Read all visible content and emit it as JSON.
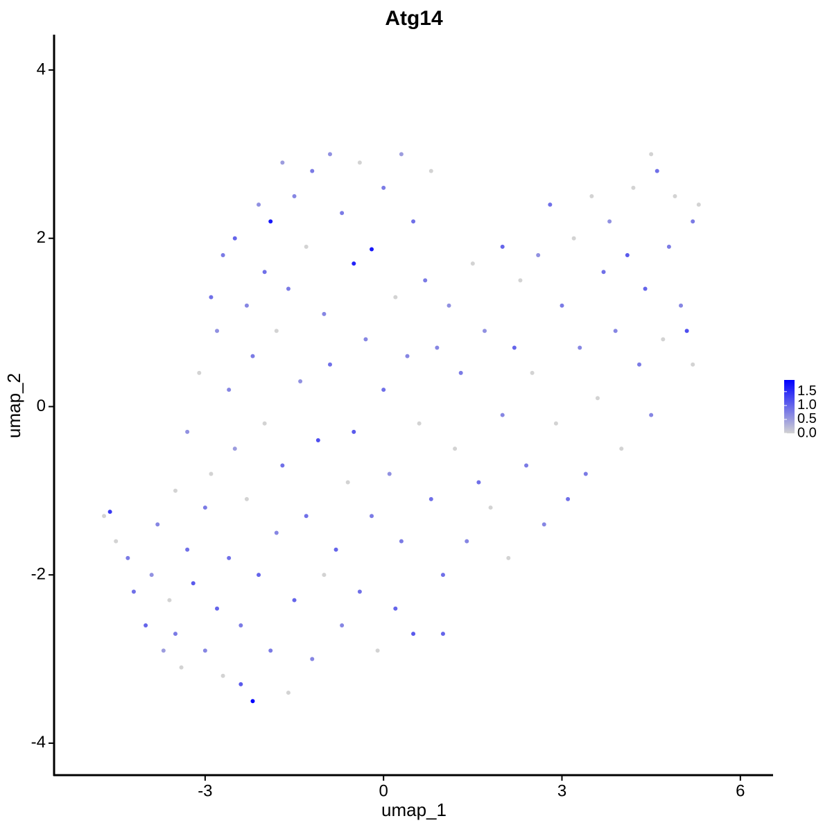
{
  "chart_data": {
    "type": "scatter",
    "title": "Atg14",
    "x_label": "umap_1",
    "y_label": "umap_2",
    "xlim": [
      -5.54,
      6.55
    ],
    "ylim": [
      -4.38,
      4.42
    ],
    "xticks": [
      -3,
      0,
      3,
      6
    ],
    "yticks": [
      -4,
      -2,
      0,
      2,
      4
    ],
    "grid": false,
    "colors": [
      "#d3d3d3",
      "#0000ff"
    ],
    "colorlim": [
      0,
      1.92
    ],
    "colorticks": [
      {
        "value": 0,
        "label": "0.0"
      },
      {
        "value": 0.5,
        "label": "0.5"
      },
      {
        "value": 1,
        "label": "1.0"
      },
      {
        "value": 1.5,
        "label": "1.5"
      }
    ],
    "x": [
      -4.6,
      -4.7,
      -4.5,
      -4.3,
      -4.2,
      -4.0,
      -3.9,
      -3.8,
      -3.7,
      -3.6,
      -3.5,
      -3.5,
      -3.4,
      -3.3,
      -3.3,
      -3.2,
      -3.1,
      -3.0,
      -3.0,
      -2.9,
      -2.9,
      -2.8,
      -2.8,
      -2.7,
      -2.7,
      -2.6,
      -2.6,
      -2.5,
      -2.5,
      -2.4,
      -2.4,
      -2.3,
      -2.3,
      -2.2,
      -2.2,
      -2.1,
      -2.1,
      -2.0,
      -2.0,
      -1.9,
      -1.9,
      -1.8,
      -1.8,
      -1.7,
      -1.7,
      -1.6,
      -1.6,
      -1.5,
      -1.5,
      -1.4,
      -1.3,
      -1.3,
      -1.2,
      -1.2,
      -1.1,
      -1.0,
      -1.0,
      -0.9,
      -0.9,
      -0.8,
      -0.7,
      -0.7,
      -0.6,
      -0.5,
      -0.5,
      -0.4,
      -0.4,
      -0.3,
      -0.2,
      -0.2,
      -0.1,
      0.0,
      0.0,
      0.1,
      0.2,
      0.2,
      0.3,
      0.3,
      0.4,
      0.5,
      0.5,
      0.6,
      0.7,
      0.8,
      0.8,
      0.9,
      1.0,
      1.0,
      1.1,
      1.2,
      1.3,
      1.4,
      1.5,
      1.6,
      1.7,
      1.8,
      2.0,
      2.0,
      2.1,
      2.2,
      2.3,
      2.4,
      2.5,
      2.6,
      2.7,
      2.8,
      2.9,
      3.0,
      3.1,
      3.2,
      3.3,
      3.4,
      3.5,
      3.6,
      3.7,
      3.8,
      3.9,
      4.0,
      4.1,
      4.2,
      4.3,
      4.4,
      4.5,
      4.5,
      4.6,
      4.7,
      4.8,
      4.9,
      5.0,
      5.1,
      5.2,
      5.3,
      5.2
    ],
    "y": [
      -1.25,
      -1.3,
      -1.6,
      -1.8,
      -2.2,
      -2.6,
      -2.0,
      -1.4,
      -2.9,
      -2.3,
      -1.0,
      -2.7,
      -3.1,
      -1.7,
      -0.3,
      -2.1,
      0.4,
      -2.9,
      -1.2,
      1.3,
      -0.8,
      -2.4,
      0.9,
      1.8,
      -3.2,
      -1.8,
      0.2,
      -0.5,
      2.0,
      -2.6,
      -3.3,
      1.2,
      -1.1,
      -3.5,
      0.6,
      -2.0,
      2.4,
      1.6,
      -0.2,
      2.2,
      -2.9,
      -1.5,
      0.9,
      2.9,
      -0.7,
      -3.4,
      1.4,
      -2.3,
      2.5,
      0.3,
      -1.3,
      1.9,
      -3.0,
      2.8,
      -0.4,
      1.1,
      -2.0,
      3.0,
      0.5,
      -1.7,
      2.3,
      -2.6,
      -0.9,
      1.7,
      -0.3,
      2.9,
      -2.2,
      0.8,
      1.87,
      -1.3,
      -2.9,
      2.6,
      0.2,
      -0.8,
      1.3,
      -2.4,
      3.0,
      -1.6,
      0.6,
      2.2,
      -2.7,
      -0.2,
      1.5,
      -1.1,
      2.8,
      0.7,
      -2.0,
      -2.7,
      1.2,
      -0.5,
      0.4,
      -1.6,
      1.7,
      -0.9,
      0.9,
      -1.2,
      1.9,
      -0.1,
      -1.8,
      0.7,
      1.5,
      -0.7,
      0.4,
      1.8,
      -1.4,
      2.4,
      -0.2,
      1.2,
      -1.1,
      2.0,
      0.7,
      -0.8,
      2.5,
      0.1,
      1.6,
      2.2,
      0.9,
      -0.5,
      1.8,
      2.6,
      0.5,
      1.4,
      3.0,
      -0.1,
      2.8,
      0.8,
      1.9,
      2.5,
      1.2,
      0.9,
      2.2,
      2.4,
      0.5
    ],
    "values": [
      1.4,
      0,
      0,
      0.8,
      0.9,
      1.0,
      0.6,
      0.7,
      0.5,
      0,
      0,
      0.8,
      0,
      0.9,
      0.6,
      1.1,
      0,
      0.7,
      0.8,
      0.9,
      0,
      1.0,
      0.6,
      0.8,
      0,
      0.9,
      0.7,
      0.5,
      1.0,
      0.8,
      1.1,
      0.7,
      0,
      1.9,
      0.8,
      1.0,
      0.6,
      0.9,
      0,
      1.7,
      0.8,
      0.7,
      0,
      0.5,
      0.9,
      0,
      0.8,
      1.0,
      0.7,
      0.6,
      0.9,
      0,
      0.7,
      0.8,
      1.2,
      0.7,
      0,
      0.6,
      0.9,
      1.0,
      0.8,
      0.7,
      0,
      1.6,
      1.1,
      0,
      0.9,
      0.7,
      1.7,
      0.8,
      0,
      0.8,
      0.9,
      0.6,
      0,
      1.0,
      0.5,
      0.8,
      0.7,
      0.9,
      1.1,
      0,
      0.8,
      0.9,
      0,
      0.7,
      0.9,
      1.0,
      0.6,
      0,
      0.8,
      0.7,
      0,
      0.9,
      0.6,
      0,
      1.0,
      0.7,
      0,
      1.0,
      0,
      0.8,
      0,
      0.6,
      0.7,
      0.9,
      0,
      0.8,
      0.9,
      0,
      0.7,
      0.8,
      0,
      0,
      0.9,
      0.6,
      0.7,
      0,
      1.1,
      0,
      0.8,
      1.0,
      0,
      0.7,
      0.9,
      0,
      0.8,
      0,
      0.7,
      1.2,
      0.8,
      0,
      0
    ]
  }
}
